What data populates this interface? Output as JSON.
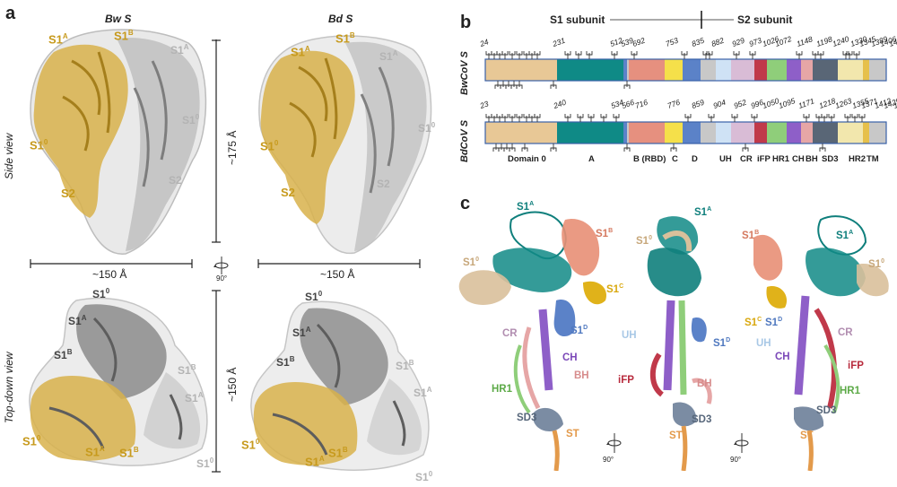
{
  "panels": {
    "a": "a",
    "b": "b",
    "c": "c"
  },
  "panel_a": {
    "col_left": "Bw S",
    "col_right": "Bd S",
    "side_view": "Side view",
    "top_view": "Top-down view",
    "height_measure": "~175 Å",
    "width_measure_left": "~150 Å",
    "width_measure_right": "~150 Å",
    "top_measure": "~150 Å",
    "rotate_label": "90°",
    "side_left_labels": {
      "s1a_gold": "S1",
      "s1b_gold": "S1",
      "s1a_grey": "S1",
      "s10_grey": "S1",
      "s10_gold": "S1",
      "s2_gold": "S2",
      "s2_grey": "S2"
    },
    "side_right_labels": {
      "s1a_gold": "S1",
      "s1b_gold": "S1",
      "s1a_grey": "S1",
      "s10_grey": "S1",
      "s10_gold": "S1",
      "s2_gold": "S2",
      "s2_grey": "S2"
    },
    "top_left_labels": {
      "s10_dark": "S1",
      "s1a_dark": "S1",
      "s1b_dark": "S1",
      "s1b_grey": "S1",
      "s1a_grey": "S1",
      "s10_gold": "S1",
      "s1a_gold": "S1",
      "s1b_gold": "S1",
      "s10_grey": "S1"
    },
    "top_right_labels": {
      "s10_dark": "S1",
      "s1a_dark": "S1",
      "s1b_dark": "S1",
      "s1b_grey": "S1",
      "s1a_grey": "S1",
      "s10_gold": "S1",
      "s1a_gold": "S1",
      "s1b_gold": "S1",
      "s10_grey": "S1"
    },
    "sup": {
      "A": "A",
      "B": "B",
      "zero": "0"
    }
  },
  "panel_b": {
    "s1_subunit": "S1 subunit",
    "s2_subunit": "S2 subunit",
    "row1_name": "BwCoV S",
    "row2_name": "BdCoV S",
    "row1_ticks": [
      "24",
      "231",
      "512",
      "539",
      "692",
      "753",
      "835",
      "882",
      "929",
      "973",
      "1026",
      "1072",
      "1148",
      "1198",
      "1240",
      "1330",
      "1345",
      "1389",
      "1406",
      "1429"
    ],
    "row2_ticks": [
      "23",
      "240",
      "534",
      "566",
      "716",
      "776",
      "859",
      "904",
      "952",
      "996",
      "1050",
      "1095",
      "1171",
      "1218",
      "1263",
      "1355",
      "1371",
      "1412",
      "1429",
      "1452"
    ],
    "domains": [
      "Domain 0",
      "A",
      "B (RBD)",
      "C",
      "D",
      "UH",
      "CR",
      "iFP",
      "HR1",
      "CH",
      "BH",
      "SD3",
      "HR2",
      "TM"
    ],
    "colors": {
      "domain0": "#e8c896",
      "A": "#0f8a86",
      "RBD": "#e6907f",
      "C": "#f5e04a",
      "D": "#5b82c8",
      "grey": "#c8c8c8",
      "UH": "#cfe2f5",
      "CR": "#d9bcd6",
      "iFP": "#c0394a",
      "HR1": "#8fce7a",
      "CH": "#8e5fc8",
      "BH": "#e6a6a6",
      "SD3": "#596676",
      "HR2": "#f2e7ad",
      "TM": "#e6c04b"
    }
  },
  "panel_c": {
    "labels_left": {
      "s1a": "S1",
      "s1b": "S1",
      "s10": "S1",
      "s1c": "S1",
      "s1d": "S1",
      "cr": "CR",
      "ch": "CH",
      "bh": "BH",
      "hr1": "HR1",
      "sd3": "SD3",
      "st": "ST"
    },
    "labels_mid": {
      "s1a": "S1",
      "s10": "S1",
      "uh": "UH",
      "s1d": "S1",
      "ifp": "iFP",
      "bh": "BH",
      "sd3": "SD3",
      "st": "ST"
    },
    "labels_right": {
      "s1b": "S1",
      "s1a": "S1",
      "s10": "S1",
      "s1c": "S1",
      "s1d": "S1",
      "uh": "UH",
      "cr": "CR",
      "ch": "CH",
      "ifp": "iFP",
      "hr1": "HR1",
      "sd3": "SD3",
      "st": "ST"
    },
    "rotate1": "90°",
    "rotate2": "90°",
    "label_colors": {
      "s1a": "#0f7f7c",
      "s1b": "#d5795f",
      "s10": "#c7a77a",
      "s1c": "#d9a80f",
      "s1d": "#4f78bf",
      "uh": "#a8c8e6",
      "cr": "#b18db0",
      "ch": "#7b48b8",
      "bh": "#d78c8c",
      "ifp": "#b82b3d",
      "hr1": "#5daa48",
      "sd3": "#56667a",
      "st": "#e39a4b"
    }
  }
}
